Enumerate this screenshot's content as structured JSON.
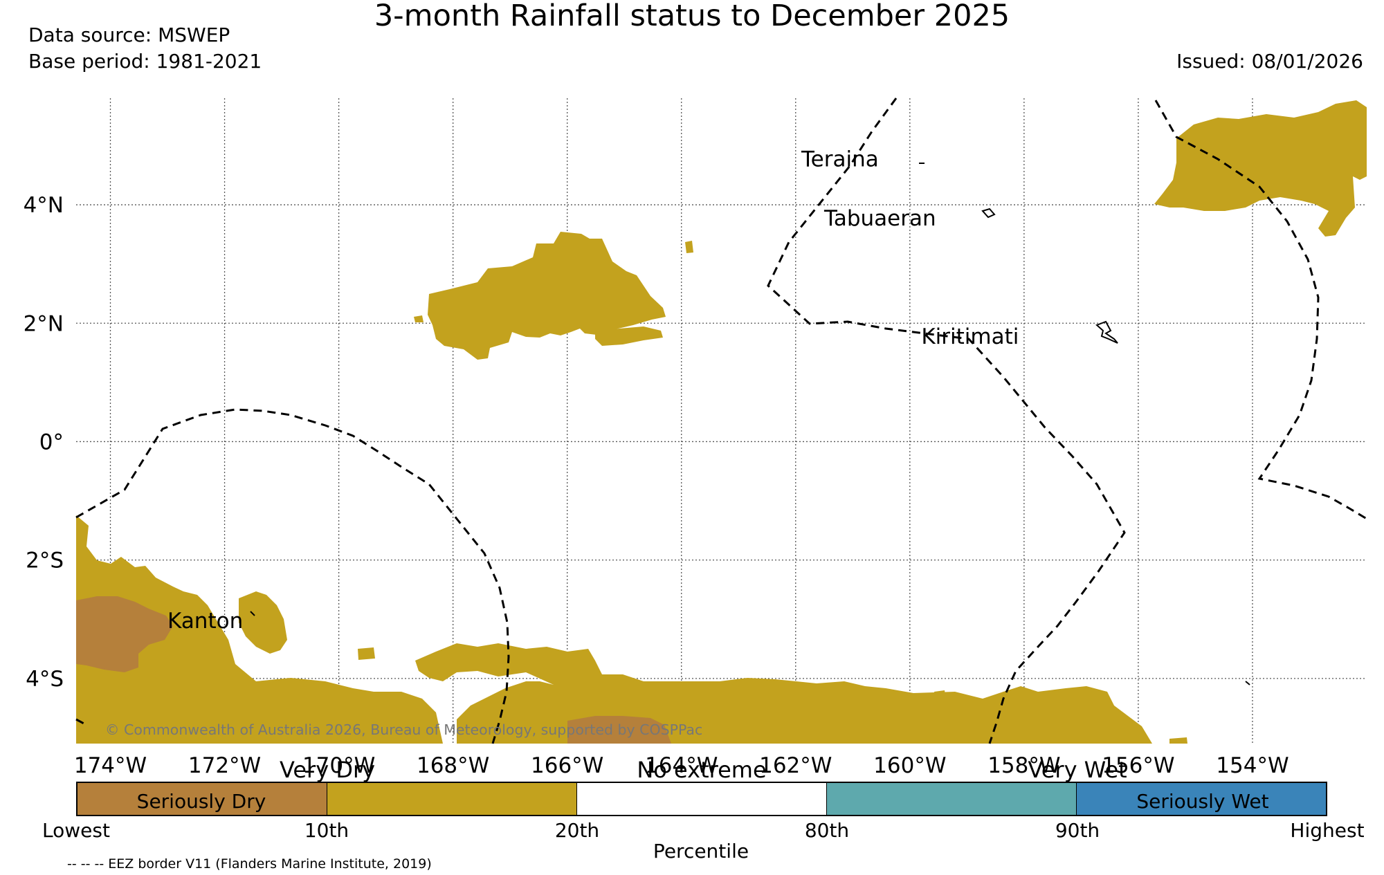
{
  "header": {
    "title": "3-month Rainfall status to December 2025",
    "data_source": "Data source: MSWEP",
    "base_period": "Base period: 1981-2021",
    "issued": "Issued: 08/01/2026"
  },
  "map": {
    "lon_range": [
      -174.6,
      -152.0
    ],
    "lat_range": [
      -5.1,
      5.8
    ],
    "lon_ticks": [
      -174,
      -172,
      -170,
      -168,
      -166,
      -164,
      -162,
      -160,
      -158,
      -156,
      -154
    ],
    "lon_labels": [
      "174°W",
      "172°W",
      "170°W",
      "168°W",
      "166°W",
      "164°W",
      "162°W",
      "160°W",
      "158°W",
      "156°W",
      "154°W"
    ],
    "lat_ticks": [
      4,
      2,
      0,
      -2,
      -4
    ],
    "lat_labels": [
      "4°N",
      "2°N",
      "0°",
      "2°S",
      "4°S"
    ],
    "gridlines": true,
    "places": [
      {
        "name": "Teraina",
        "lon": -161.9,
        "lat": 4.65
      },
      {
        "name": "Tabuaeran",
        "lon": -161.5,
        "lat": 3.65
      },
      {
        "name": "Kiritimati",
        "lon": -159.8,
        "lat": 1.65
      },
      {
        "name": "Kanton",
        "lon": -173.0,
        "lat": -3.15
      }
    ],
    "copyright": "© Commonwealth of Australia 2026, Bureau of Meteorology, supported by COSPPac",
    "colors": {
      "seriously_dry": "#b5803b",
      "very_dry": "#c3a21e",
      "very_wet": "#5ea9ad",
      "seriously_wet": "#3a84b9"
    }
  },
  "legend": {
    "categories": [
      {
        "name": "Seriously Dry",
        "color": "#b5803b"
      },
      {
        "name": "Very Dry",
        "color": "#c3a21e"
      },
      {
        "name": "No extreme",
        "color": "#ffffff"
      },
      {
        "name": "Very Wet",
        "color": "#5ea9ad"
      },
      {
        "name": "Seriously Wet",
        "color": "#3a84b9"
      }
    ],
    "percentile_ticks": [
      "Lowest",
      "10th",
      "20th",
      "80th",
      "90th",
      "Highest"
    ],
    "axis_label": "Percentile",
    "eez_note": "-- -- -- EEZ border V11 (Flanders Marine Institute, 2019)"
  }
}
